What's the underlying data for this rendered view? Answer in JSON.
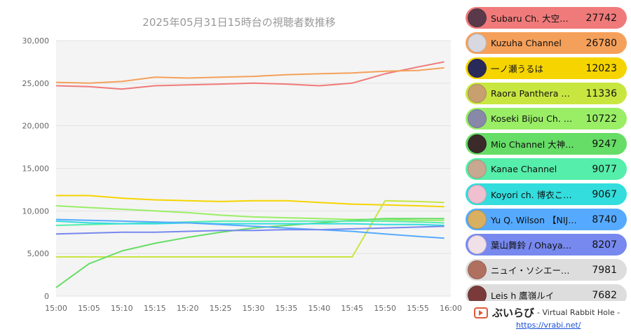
{
  "chart_data": {
    "type": "line",
    "title": "2025年05月31日15時台の視聴者数推移",
    "xlabel": "",
    "ylabel": "",
    "ylim": [
      0,
      30000
    ],
    "yticks": [
      "0",
      "5,000",
      "10,000",
      "15,000",
      "20,000",
      "25,000",
      "30,000"
    ],
    "xticks": [
      "15:00",
      "15:05",
      "15:10",
      "15:15",
      "15:20",
      "15:25",
      "15:30",
      "15:35",
      "15:40",
      "15:45",
      "15:50",
      "15:55",
      "16:00"
    ],
    "x_minutes": [
      0,
      5,
      10,
      15,
      20,
      25,
      30,
      35,
      40,
      45,
      50,
      55,
      59
    ],
    "grid": true,
    "legend_position": "right",
    "series": [
      {
        "name": "Subaru Ch. 大空…",
        "value": "27742",
        "color": "#f07a7a",
        "values": [
          24700,
          24600,
          24300,
          24700,
          24800,
          24900,
          25000,
          24900,
          24700,
          25000,
          26100,
          26900,
          27500
        ]
      },
      {
        "name": "Kuzuha Channel",
        "value": "26780",
        "color": "#f5a05a",
        "values": [
          25100,
          25000,
          25200,
          25700,
          25600,
          25700,
          25800,
          26000,
          26100,
          26200,
          26400,
          26500,
          26800
        ]
      },
      {
        "name": "一ノ瀬うるは",
        "value": "12023",
        "color": "#f5d400",
        "values": [
          11800,
          11800,
          11500,
          11300,
          11200,
          11100,
          11200,
          11200,
          11000,
          10800,
          10700,
          10600,
          10500
        ]
      },
      {
        "name": "Raora Panthera …",
        "value": "11336",
        "color": "#c8e640",
        "values": [
          4600,
          4600,
          4600,
          4600,
          4600,
          4600,
          4600,
          4600,
          4600,
          4600,
          11200,
          11100,
          11000
        ]
      },
      {
        "name": "Koseki Bijou Ch. …",
        "value": "10722",
        "color": "#99ee66",
        "values": [
          10600,
          10400,
          10200,
          10000,
          9800,
          9500,
          9300,
          9200,
          9100,
          9000,
          9000,
          8900,
          8900
        ]
      },
      {
        "name": "Mio Channel 大神…",
        "value": "9247",
        "color": "#66dd66",
        "values": [
          1000,
          3800,
          5300,
          6200,
          6900,
          7500,
          8000,
          8300,
          8600,
          8900,
          9100,
          9100,
          9100
        ]
      },
      {
        "name": "Kanae Channel",
        "value": "9077",
        "color": "#55eeaa",
        "values": [
          8300,
          8400,
          8500,
          8600,
          8700,
          8800,
          8800,
          8800,
          8800,
          8800,
          8800,
          8700,
          8600
        ]
      },
      {
        "name": "Koyori ch. 博衣こ…",
        "value": "9067",
        "color": "#33dddd",
        "values": [
          8800,
          8600,
          8500,
          8500,
          8600,
          8500,
          8500,
          8500,
          8500,
          8500,
          8400,
          8400,
          8300
        ]
      },
      {
        "name": "Yu Q. Wilson 【NIJ…",
        "value": "8740",
        "color": "#55aaff",
        "values": [
          9000,
          8900,
          8800,
          8700,
          8600,
          8400,
          8200,
          8000,
          7800,
          7600,
          7300,
          7000,
          6800
        ]
      },
      {
        "name": "葉山舞鈴 / Ohaya…",
        "value": "8207",
        "color": "#7788ee",
        "values": [
          7300,
          7400,
          7500,
          7500,
          7600,
          7700,
          7700,
          7800,
          7800,
          7900,
          8000,
          8100,
          8200
        ]
      },
      {
        "name": "ニュイ・ソシエー…",
        "value": "7981",
        "color": "#dddddd",
        "values": []
      },
      {
        "name": "Leis h 鷹嶺ルイ",
        "value": "7682",
        "color": "#dddddd",
        "values": []
      }
    ]
  },
  "legend_avatars": [
    "#5a3a4a",
    "#d8d8e0",
    "#2a2a5a",
    "#c8a070",
    "#8888a8",
    "#3a2a2a",
    "#c8a890",
    "#f0c0d0",
    "#d8b060",
    "#f0e0e8",
    "#b07060",
    "#7a3a3a"
  ],
  "brand": {
    "icon": "play-icon",
    "name": "ぶいらび",
    "tagline": "- Virtual Rabbit Hole -",
    "url": "https://vrabi.net/"
  }
}
